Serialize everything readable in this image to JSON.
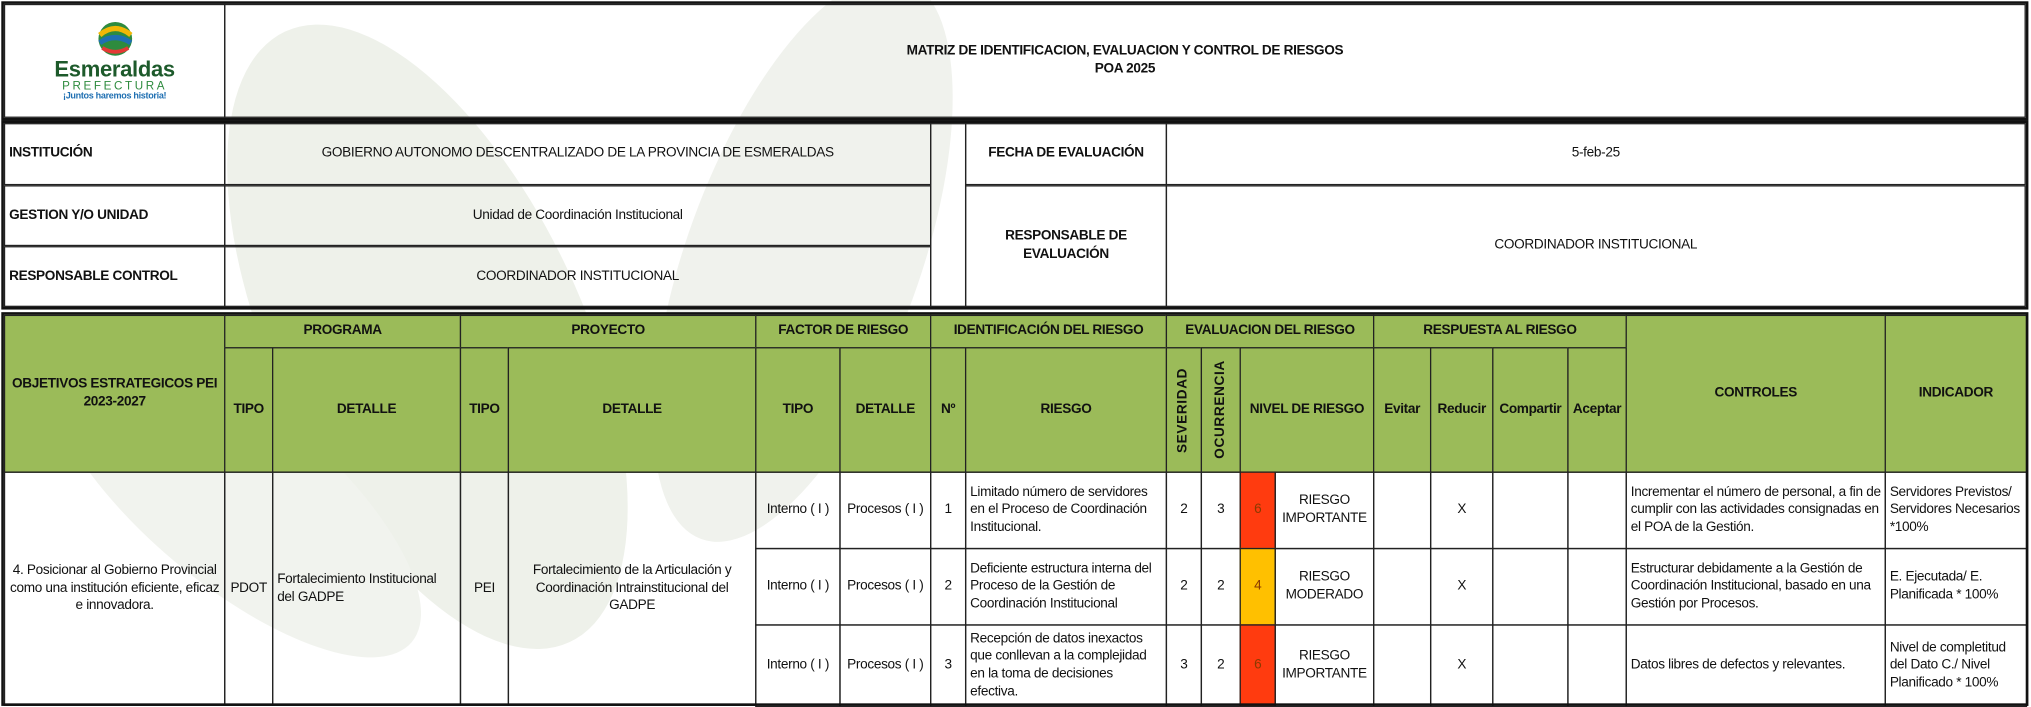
{
  "header": {
    "logo_name": "Esmeraldas",
    "logo_sub": "PREFECTURA",
    "logo_slogan": "¡Juntos haremos historia!",
    "title": "MATRIZ DE IDENTIFICACION, EVALUACION Y CONTROL DE RIESGOS",
    "subtitle": "POA 2025"
  },
  "info": {
    "institucion_label": "INSTITUCIÓN",
    "institucion": "GOBIERNO AUTONOMO DESCENTRALIZADO DE LA PROVINCIA DE ESMERALDAS",
    "gestion_label": "GESTION Y/O UNIDAD",
    "gestion": "Unidad de Coordinación Institucional",
    "control_label": "RESPONSABLE CONTROL",
    "control": "COORDINADOR INSTITUCIONAL",
    "fecha_label": "FECHA DE EVALUACIÓN",
    "fecha": "5-feb-25",
    "evaluacion_label": "RESPONSABLE DE EVALUACIÓN",
    "evaluacion": "COORDINADOR INSTITUCIONAL"
  },
  "table": {
    "objetivos_header": "OBJETIVOS ESTRATEGICOS PEI 2023-2027",
    "groups": [
      "PROGRAMA",
      "PROYECTO",
      "FACTOR DE RIESGO",
      "IDENTIFICACIÓN DEL RIESGO",
      "EVALUACION DEL RIESGO",
      "RESPUESTA AL RIESGO"
    ],
    "controles_header": "CONTROLES",
    "indicador_header": "INDICADOR",
    "columns": [
      "TIPO",
      "DETALLE",
      "TIPO",
      "DETALLE",
      "TIPO",
      "DETALLE",
      "Nº",
      "RIESGO",
      "SEVERIDAD",
      "OCURRENCIA",
      "NIVEL DE RIESGO",
      "Evitar",
      "Reducir",
      "Compartir",
      "Aceptar"
    ],
    "objetivo": "4. Posicionar al Gobierno Provincial como una institución eficiente, eficaz e innovadora.",
    "programa_tipo": "PDOT",
    "programa_detalle": "Fortalecimiento Institucional del GADPE",
    "proyecto_tipo": "PEI",
    "proyecto_detalle": "Fortalecimiento de la Articulación y Coordinación Intrainstitucional del GADPE",
    "rows": [
      {
        "factor_tipo": "Interno ( I )",
        "factor_detalle": "Procesos ( I )",
        "n": 1,
        "riesgo": "Limitado número de servidores en el Proceso de Coordinación Institucional.",
        "severidad": 2,
        "ocurrencia": 3,
        "nivel": 6,
        "color": "#ff3b0f",
        "nivel_texto": "RIESGO IMPORTANTE",
        "reducir": "X",
        "controles": "Incrementar el número de personal, a fin de cumplir con las actividades consignadas en el POA de la Gestión.",
        "indicador": "Servidores Previstos/ Servidores Necesarios *100%"
      },
      {
        "factor_tipo": "Interno ( I )",
        "factor_detalle": "Procesos ( I )",
        "n": 2,
        "riesgo": "Deficiente estructura interna del Proceso de la Gestión de Coordinación Institucional",
        "severidad": 2,
        "ocurrencia": 2,
        "nivel": 4,
        "color": "#ffc000",
        "nivel_texto": "RIESGO MODERADO",
        "reducir": "X",
        "controles": "Estructurar debidamente a la Gestión de Coordinación Institucional, basado en una Gestión por Procesos.",
        "indicador": "E. Ejecutada/ E. Planificada * 100%"
      },
      {
        "factor_tipo": "Interno ( I )",
        "factor_detalle": "Procesos ( I )",
        "n": 3,
        "riesgo": "Recepción de datos inexactos que conllevan a la complejidad en la toma de decisiones efectiva.",
        "severidad": 3,
        "ocurrencia": 2,
        "nivel": 6,
        "color": "#ff3b0f",
        "nivel_texto": "RIESGO IMPORTANTE",
        "reducir": "X",
        "controles": "Datos libres de defectos y relevantes.",
        "indicador": "Nivel de completitud del Dato C./ Nivel Planificado * 100%"
      }
    ]
  }
}
